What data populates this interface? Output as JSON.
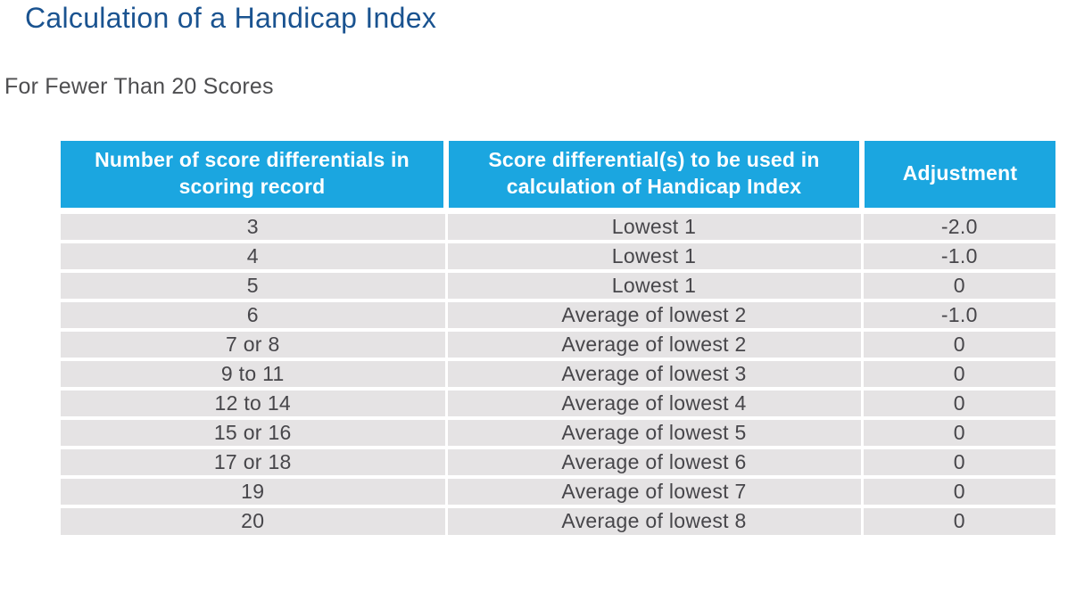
{
  "page": {
    "title": "Calculation of a Handicap Index",
    "subtitle": "For Fewer Than 20 Scores"
  },
  "table": {
    "columns": [
      "Number of score differentials in scoring record",
      "Score differential(s) to be used in calculation of Handicap Index",
      "Adjustment"
    ],
    "rows": [
      [
        "3",
        "Lowest 1",
        "-2.0"
      ],
      [
        "4",
        "Lowest 1",
        "-1.0"
      ],
      [
        "5",
        "Lowest 1",
        "0"
      ],
      [
        "6",
        "Average of lowest 2",
        "-1.0"
      ],
      [
        "7 or 8",
        "Average of lowest 2",
        "0"
      ],
      [
        "9 to 11",
        "Average of lowest 3",
        "0"
      ],
      [
        "12 to 14",
        "Average of lowest 4",
        "0"
      ],
      [
        "15 or 16",
        "Average of lowest 5",
        "0"
      ],
      [
        "17 or 18",
        "Average of lowest 6",
        "0"
      ],
      [
        "19",
        "Average of lowest 7",
        "0"
      ],
      [
        "20",
        "Average of lowest 8",
        "0"
      ]
    ]
  },
  "chart_data": {
    "type": "table",
    "title": "Calculation of a Handicap Index",
    "subtitle": "For Fewer Than 20 Scores",
    "columns": [
      "Number of score differentials in scoring record",
      "Score differential(s) to be used in calculation of Handicap Index",
      "Adjustment"
    ],
    "rows": [
      [
        "3",
        "Lowest 1",
        "-2.0"
      ],
      [
        "4",
        "Lowest 1",
        "-1.0"
      ],
      [
        "5",
        "Lowest 1",
        "0"
      ],
      [
        "6",
        "Average of lowest 2",
        "-1.0"
      ],
      [
        "7 or 8",
        "Average of lowest 2",
        "0"
      ],
      [
        "9 to 11",
        "Average of lowest 3",
        "0"
      ],
      [
        "12 to 14",
        "Average of lowest 4",
        "0"
      ],
      [
        "15 or 16",
        "Average of lowest 5",
        "0"
      ],
      [
        "17 or 18",
        "Average of lowest 6",
        "0"
      ],
      [
        "19",
        "Average of lowest 7",
        "0"
      ],
      [
        "20",
        "Average of lowest 8",
        "0"
      ]
    ]
  },
  "colors": {
    "title_blue": "#1a5390",
    "subtitle_gray": "#4e4e50",
    "header_bg": "#1ba6e0",
    "header_text": "#ffffff",
    "row_bg": "#e5e3e4",
    "row_text": "#47464a"
  }
}
